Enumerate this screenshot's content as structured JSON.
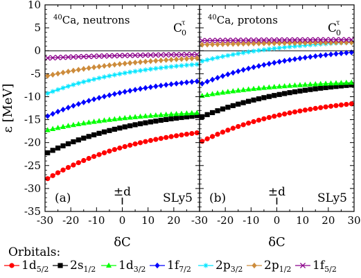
{
  "chart_data": {
    "type": "line",
    "x_label": "δC",
    "y_label": "ε [MeV]",
    "x_ticks": [
      -30,
      -20,
      -10,
      0,
      10,
      20,
      30
    ],
    "y_ticks": [
      10,
      5,
      0,
      -5,
      -10,
      -15,
      -20,
      -25,
      -30,
      -35
    ],
    "x_range": [
      -30,
      30
    ],
    "y_range": [
      -35,
      10
    ],
    "coupling": {
      "base": "C",
      "sub": "0",
      "sup": "τ"
    },
    "marker_label": "±d",
    "marker_x": 0,
    "x_points": [
      -29,
      -27,
      -25,
      -23,
      -21,
      -19,
      -17,
      -15,
      -13,
      -11,
      -9,
      -7,
      -5,
      -3,
      -1,
      1,
      3,
      5,
      7,
      9,
      11,
      13,
      15,
      17,
      19,
      21,
      23,
      25,
      27,
      29
    ],
    "legend": {
      "title": "Orbitals:",
      "entries": [
        {
          "key": "d52",
          "base": "1d",
          "sub": "5/2",
          "color": "#ff0000",
          "marker": "circle"
        },
        {
          "key": "s12",
          "base": "2s",
          "sub": "1/2",
          "color": "#000000",
          "marker": "square"
        },
        {
          "key": "d32",
          "base": "1d",
          "sub": "3/2",
          "color": "#00ff00",
          "marker": "triangle"
        },
        {
          "key": "f72",
          "base": "1f",
          "sub": "7/2",
          "color": "#0000ff",
          "marker": "diamond"
        },
        {
          "key": "p32",
          "base": "2p",
          "sub": "3/2",
          "color": "#00e5ff",
          "marker": "star"
        },
        {
          "key": "p12",
          "base": "2p",
          "sub": "1/2",
          "color": "#cd8c3c",
          "marker": "diamond"
        },
        {
          "key": "f52",
          "base": "1f",
          "sub": "5/2",
          "color": "#8b008b",
          "marker": "cross"
        }
      ]
    },
    "panels": [
      {
        "id": "neutrons",
        "label": "(a)",
        "nucleus_mass": "40",
        "nucleus_name": "Ca, neutrons",
        "force": "SLy5",
        "series": [
          {
            "key": "d52",
            "y_start": -28.2,
            "y_end": -17.8
          },
          {
            "key": "s12",
            "y_start": -22.5,
            "y_end": -14.1
          },
          {
            "key": "d32",
            "y_start": -17.4,
            "y_end": -13.5
          },
          {
            "key": "f72",
            "y_start": -14.5,
            "y_end": -6.6
          },
          {
            "key": "p32",
            "y_start": -9.5,
            "y_end": -2.9
          },
          {
            "key": "p12",
            "y_start": -5.6,
            "y_end": -1.6
          },
          {
            "key": "f52",
            "y_start": -1.6,
            "y_end": -0.8
          }
        ]
      },
      {
        "id": "protons",
        "label": "(b)",
        "nucleus_mass": "40",
        "nucleus_name": "Ca, protons",
        "force": "SLy5",
        "series": [
          {
            "key": "d52",
            "y_start": -20.0,
            "y_end": -11.5
          },
          {
            "key": "s12",
            "y_start": -14.6,
            "y_end": -7.4
          },
          {
            "key": "d32",
            "y_start": -9.9,
            "y_end": -6.9
          },
          {
            "key": "f72",
            "y_start": -7.4,
            "y_end": -0.3
          },
          {
            "key": "p32",
            "y_start": -2.4,
            "y_end": 1.9
          },
          {
            "key": "p12",
            "y_start": 1.3,
            "y_end": 1.8
          },
          {
            "key": "f52",
            "y_start": 2.2,
            "y_end": 2.4
          }
        ]
      }
    ]
  }
}
